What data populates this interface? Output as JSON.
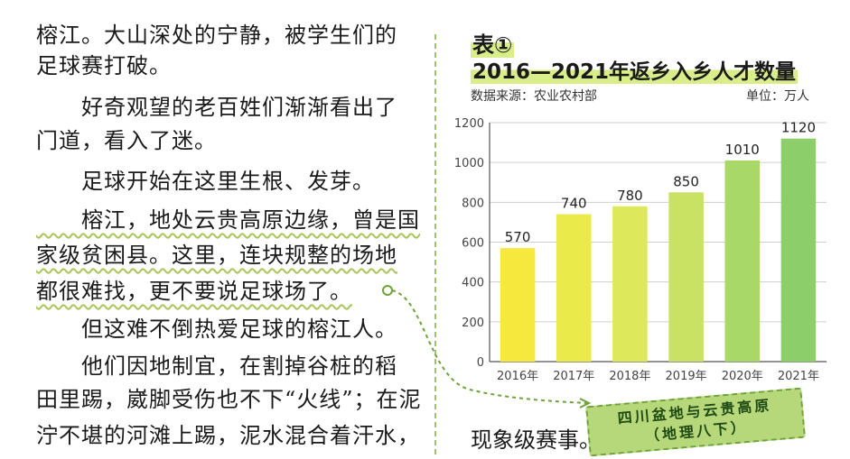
{
  "left_text": {
    "lines": [
      "榕江。大山深处的宁静，被学生们的",
      "足球赛打破。",
      "　　好奇观望的老百姓们渐渐看出了",
      "门道，看入了迷。",
      "　　足球开始在这里生根、发芽。",
      "　　榕江，地处云贵高原边缘，曾是国",
      "家级贫困县。这里，连块规整的场地",
      "都很难找，更不要说足球场了。",
      "　　但这难不倒热爱足球的榕江人。",
      "　　他们因地制宜，在割掉谷桩的稻",
      "田里踢，崴脚受伤也不下“火线”；在泥",
      "泞不堪的河滩上踢，泥水混合着汗水，"
    ]
  },
  "figure": {
    "label": "表①",
    "title": "2016—2021年返乡入乡人才数量",
    "source": "数据来源：农业农村部",
    "unit": "单位：万人"
  },
  "chart_data": {
    "type": "bar",
    "categories": [
      "2016年",
      "2017年",
      "2018年",
      "2019年",
      "2020年",
      "2021年"
    ],
    "values": [
      570,
      740,
      780,
      850,
      1010,
      1120
    ],
    "ylim": [
      0,
      1200
    ],
    "yticks": [
      0,
      200,
      400,
      600,
      800,
      1000,
      1200
    ],
    "grid": true,
    "colors": [
      "#f7e83e",
      "#eaea4a",
      "#dde85a",
      "#c9e264",
      "#a8d868",
      "#8ccf6a"
    ]
  },
  "bottom_text": "现象级赛事。",
  "tag": {
    "line1": "四川盆地与云贵高原",
    "line2": "（地理八下）"
  },
  "colors": {
    "accent_green": "#9cc46b",
    "highlight": "#d9ee8a"
  }
}
